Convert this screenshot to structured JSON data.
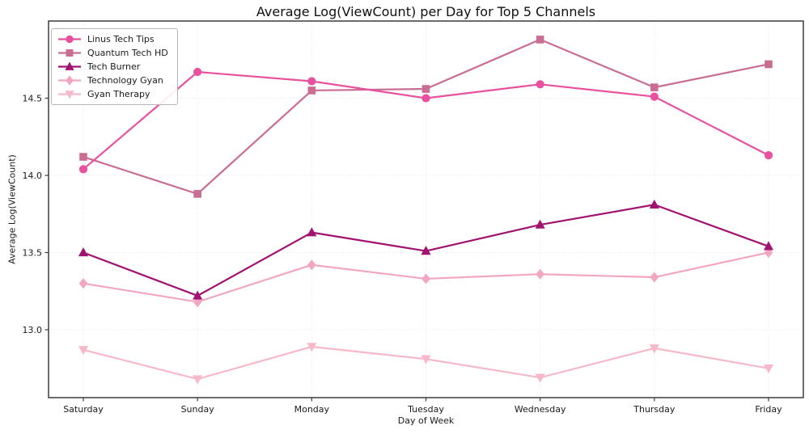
{
  "figure": {
    "title": "Average Log(ViewCount) per Day for Top 5 Channels",
    "xlabel": "Day of Week",
    "ylabel": "Average Log(ViewCount)"
  },
  "chart_data": {
    "type": "line",
    "title": "Average Log(ViewCount) per Day for Top 5 Channels",
    "xlabel": "Day of Week",
    "ylabel": "Average Log(ViewCount)",
    "categories": [
      "Saturday",
      "Sunday",
      "Monday",
      "Tuesday",
      "Wednesday",
      "Thursday",
      "Friday"
    ],
    "series": [
      {
        "name": "Linus Tech Tips",
        "marker": "circle",
        "color": "#e8519f",
        "values": [
          14.04,
          14.67,
          14.61,
          14.5,
          14.59,
          14.51,
          14.13
        ]
      },
      {
        "name": "Quantum Tech HD",
        "marker": "square",
        "color": "#c96d92",
        "values": [
          14.12,
          13.88,
          14.55,
          14.56,
          14.88,
          14.57,
          14.72
        ]
      },
      {
        "name": "Tech Burner",
        "marker": "triangle-up",
        "color": "#a21270",
        "values": [
          13.5,
          13.22,
          13.63,
          13.51,
          13.68,
          13.81,
          13.54
        ]
      },
      {
        "name": "Technology Gyan",
        "marker": "diamond",
        "color": "#f2a6c0",
        "values": [
          13.3,
          13.18,
          13.42,
          13.33,
          13.36,
          13.34,
          13.5
        ]
      },
      {
        "name": "Gyan Therapy",
        "marker": "triangle-down",
        "color": "#f7b9c9",
        "values": [
          12.87,
          12.68,
          12.89,
          12.81,
          12.69,
          12.88,
          12.75
        ]
      }
    ],
    "yticks": [
      13.0,
      13.5,
      14.0,
      14.5
    ],
    "ylim": [
      12.56,
      15.0
    ],
    "grid": true,
    "legend_position": "upper-left"
  },
  "colors": {
    "text": "#1a1a1a",
    "spine": "#3c3c3c",
    "grid": "#e2e2e2",
    "legend_border": "#b5b5b5",
    "background": "#ffffff"
  }
}
